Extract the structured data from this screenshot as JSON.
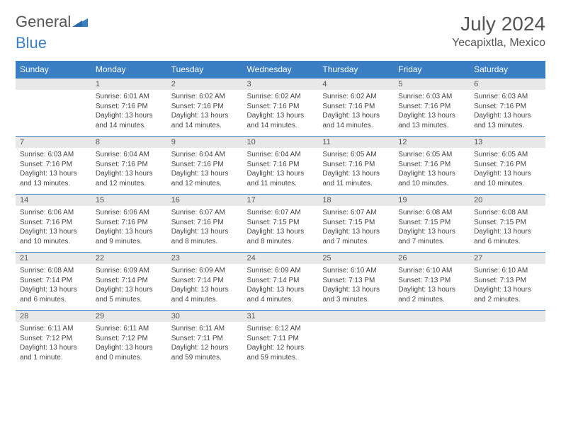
{
  "brand": {
    "word1": "General",
    "word2": "Blue"
  },
  "title": "July 2024",
  "location": "Yecapixtla, Mexico",
  "colors": {
    "header_bg": "#3a7fc4",
    "header_text": "#ffffff",
    "daynum_bg": "#e8e8e8",
    "border": "#3a7fc4",
    "body_text": "#444444",
    "title_text": "#555555"
  },
  "day_headers": [
    "Sunday",
    "Monday",
    "Tuesday",
    "Wednesday",
    "Thursday",
    "Friday",
    "Saturday"
  ],
  "weeks": [
    [
      null,
      {
        "n": "1",
        "sunrise": "6:01 AM",
        "sunset": "7:16 PM",
        "daylight": "13 hours and 14 minutes."
      },
      {
        "n": "2",
        "sunrise": "6:02 AM",
        "sunset": "7:16 PM",
        "daylight": "13 hours and 14 minutes."
      },
      {
        "n": "3",
        "sunrise": "6:02 AM",
        "sunset": "7:16 PM",
        "daylight": "13 hours and 14 minutes."
      },
      {
        "n": "4",
        "sunrise": "6:02 AM",
        "sunset": "7:16 PM",
        "daylight": "13 hours and 14 minutes."
      },
      {
        "n": "5",
        "sunrise": "6:03 AM",
        "sunset": "7:16 PM",
        "daylight": "13 hours and 13 minutes."
      },
      {
        "n": "6",
        "sunrise": "6:03 AM",
        "sunset": "7:16 PM",
        "daylight": "13 hours and 13 minutes."
      }
    ],
    [
      {
        "n": "7",
        "sunrise": "6:03 AM",
        "sunset": "7:16 PM",
        "daylight": "13 hours and 13 minutes."
      },
      {
        "n": "8",
        "sunrise": "6:04 AM",
        "sunset": "7:16 PM",
        "daylight": "13 hours and 12 minutes."
      },
      {
        "n": "9",
        "sunrise": "6:04 AM",
        "sunset": "7:16 PM",
        "daylight": "13 hours and 12 minutes."
      },
      {
        "n": "10",
        "sunrise": "6:04 AM",
        "sunset": "7:16 PM",
        "daylight": "13 hours and 11 minutes."
      },
      {
        "n": "11",
        "sunrise": "6:05 AM",
        "sunset": "7:16 PM",
        "daylight": "13 hours and 11 minutes."
      },
      {
        "n": "12",
        "sunrise": "6:05 AM",
        "sunset": "7:16 PM",
        "daylight": "13 hours and 10 minutes."
      },
      {
        "n": "13",
        "sunrise": "6:05 AM",
        "sunset": "7:16 PM",
        "daylight": "13 hours and 10 minutes."
      }
    ],
    [
      {
        "n": "14",
        "sunrise": "6:06 AM",
        "sunset": "7:16 PM",
        "daylight": "13 hours and 10 minutes."
      },
      {
        "n": "15",
        "sunrise": "6:06 AM",
        "sunset": "7:16 PM",
        "daylight": "13 hours and 9 minutes."
      },
      {
        "n": "16",
        "sunrise": "6:07 AM",
        "sunset": "7:16 PM",
        "daylight": "13 hours and 8 minutes."
      },
      {
        "n": "17",
        "sunrise": "6:07 AM",
        "sunset": "7:15 PM",
        "daylight": "13 hours and 8 minutes."
      },
      {
        "n": "18",
        "sunrise": "6:07 AM",
        "sunset": "7:15 PM",
        "daylight": "13 hours and 7 minutes."
      },
      {
        "n": "19",
        "sunrise": "6:08 AM",
        "sunset": "7:15 PM",
        "daylight": "13 hours and 7 minutes."
      },
      {
        "n": "20",
        "sunrise": "6:08 AM",
        "sunset": "7:15 PM",
        "daylight": "13 hours and 6 minutes."
      }
    ],
    [
      {
        "n": "21",
        "sunrise": "6:08 AM",
        "sunset": "7:14 PM",
        "daylight": "13 hours and 6 minutes."
      },
      {
        "n": "22",
        "sunrise": "6:09 AM",
        "sunset": "7:14 PM",
        "daylight": "13 hours and 5 minutes."
      },
      {
        "n": "23",
        "sunrise": "6:09 AM",
        "sunset": "7:14 PM",
        "daylight": "13 hours and 4 minutes."
      },
      {
        "n": "24",
        "sunrise": "6:09 AM",
        "sunset": "7:14 PM",
        "daylight": "13 hours and 4 minutes."
      },
      {
        "n": "25",
        "sunrise": "6:10 AM",
        "sunset": "7:13 PM",
        "daylight": "13 hours and 3 minutes."
      },
      {
        "n": "26",
        "sunrise": "6:10 AM",
        "sunset": "7:13 PM",
        "daylight": "13 hours and 2 minutes."
      },
      {
        "n": "27",
        "sunrise": "6:10 AM",
        "sunset": "7:13 PM",
        "daylight": "13 hours and 2 minutes."
      }
    ],
    [
      {
        "n": "28",
        "sunrise": "6:11 AM",
        "sunset": "7:12 PM",
        "daylight": "13 hours and 1 minute."
      },
      {
        "n": "29",
        "sunrise": "6:11 AM",
        "sunset": "7:12 PM",
        "daylight": "13 hours and 0 minutes."
      },
      {
        "n": "30",
        "sunrise": "6:11 AM",
        "sunset": "7:11 PM",
        "daylight": "12 hours and 59 minutes."
      },
      {
        "n": "31",
        "sunrise": "6:12 AM",
        "sunset": "7:11 PM",
        "daylight": "12 hours and 59 minutes."
      },
      null,
      null,
      null
    ]
  ],
  "labels": {
    "sunrise": "Sunrise:",
    "sunset": "Sunset:",
    "daylight": "Daylight:"
  }
}
